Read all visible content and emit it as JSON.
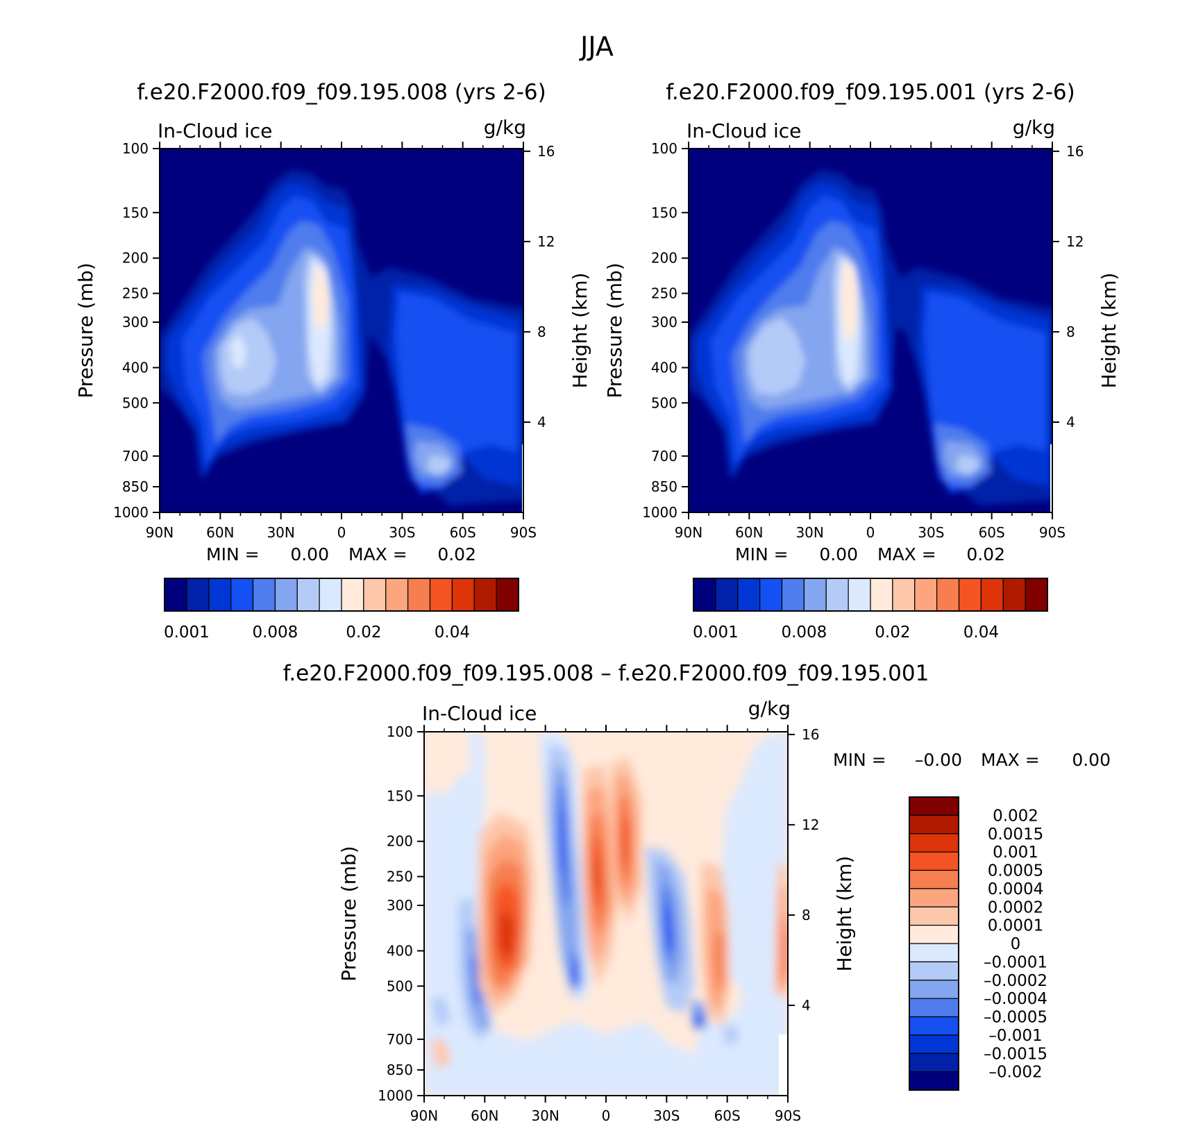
{
  "main_title": "JJA",
  "colors": {
    "abs_scale": [
      "#00007f",
      "#0021a8",
      "#0036d4",
      "#1450f2",
      "#4f7ded",
      "#84a5ef",
      "#b4cbf8",
      "#dbe9ff",
      "#ffeadc",
      "#fdc7ab",
      "#fca57f",
      "#f77f4f",
      "#f45424",
      "#dd3509",
      "#b01b00",
      "#800000"
    ],
    "diff_scale": [
      "#00007f",
      "#0021a8",
      "#0036d4",
      "#1450f2",
      "#4f7ded",
      "#84a5ef",
      "#b4cbf8",
      "#dbe9ff",
      "#ffeadc",
      "#fdc7ab",
      "#fca57f",
      "#f77f4f",
      "#f45424",
      "#dd3509",
      "#b01b00",
      "#800000"
    ]
  },
  "chart_data": [
    {
      "type": "heatmap",
      "title": "f.e20.F2000.f09_f09.195.008 (yrs 2-6)",
      "left_label": "In-Cloud ice",
      "units": "g/kg",
      "xlabel": "",
      "ylabel": "Pressure (mb)",
      "ylabel_right": "Height (km)",
      "x_ticks": [
        "90N",
        "60N",
        "30N",
        "0",
        "30S",
        "60S",
        "90S"
      ],
      "x_range": [
        90,
        -90
      ],
      "y_ticks": [
        "100",
        "150",
        "200",
        "250",
        "300",
        "400",
        "500",
        "700",
        "850",
        "1000"
      ],
      "y_range": [
        100,
        1000
      ],
      "y_scale": "log",
      "height_ticks": [
        "16",
        "12",
        "8",
        "4"
      ],
      "min_label": "MIN =",
      "min_value": "0.00",
      "max_label": "MAX =",
      "max_value": "0.02",
      "colorbar_labels": [
        "0.001",
        "0.008",
        "0.02",
        "0.04"
      ],
      "approx_peak": {
        "lat": -10,
        "pressure": 270,
        "value": 0.02
      }
    },
    {
      "type": "heatmap",
      "title": "f.e20.F2000.f09_f09.195.001 (yrs 2-6)",
      "left_label": "In-Cloud ice",
      "units": "g/kg",
      "xlabel": "",
      "ylabel": "Pressure (mb)",
      "ylabel_right": "Height (km)",
      "x_ticks": [
        "90N",
        "60N",
        "30N",
        "0",
        "30S",
        "60S",
        "90S"
      ],
      "x_range": [
        90,
        -90
      ],
      "y_ticks": [
        "100",
        "150",
        "200",
        "250",
        "300",
        "400",
        "500",
        "700",
        "850",
        "1000"
      ],
      "y_range": [
        100,
        1000
      ],
      "y_scale": "log",
      "height_ticks": [
        "16",
        "12",
        "8",
        "4"
      ],
      "min_label": "MIN =",
      "min_value": "0.00",
      "max_label": "MAX =",
      "max_value": "0.02",
      "colorbar_labels": [
        "0.001",
        "0.008",
        "0.02",
        "0.04"
      ],
      "approx_peak": {
        "lat": -10,
        "pressure": 270,
        "value": 0.02
      }
    },
    {
      "type": "heatmap",
      "title": "f.e20.F2000.f09_f09.195.008 – f.e20.F2000.f09_f09.195.001",
      "left_label": "In-Cloud ice",
      "units": "g/kg",
      "xlabel": "",
      "ylabel": "Pressure (mb)",
      "ylabel_right": "Height (km)",
      "x_ticks": [
        "90N",
        "60N",
        "30N",
        "0",
        "30S",
        "60S",
        "90S"
      ],
      "x_range": [
        90,
        -90
      ],
      "y_ticks": [
        "100",
        "150",
        "200",
        "250",
        "300",
        "400",
        "500",
        "700",
        "850",
        "1000"
      ],
      "y_range": [
        100,
        1000
      ],
      "y_scale": "log",
      "height_ticks": [
        "16",
        "12",
        "8",
        "4"
      ],
      "min_label": "MIN =",
      "min_value": "–0.00",
      "max_label": "MAX =",
      "max_value": "0.00",
      "colorbar_labels": [
        "0.002",
        "0.0015",
        "0.001",
        "0.0005",
        "0.0004",
        "0.0002",
        "0.0001",
        "0",
        "–0.0001",
        "–0.0002",
        "–0.0004",
        "–0.0005",
        "–0.001",
        "–0.0015",
        "–0.002"
      ]
    }
  ]
}
